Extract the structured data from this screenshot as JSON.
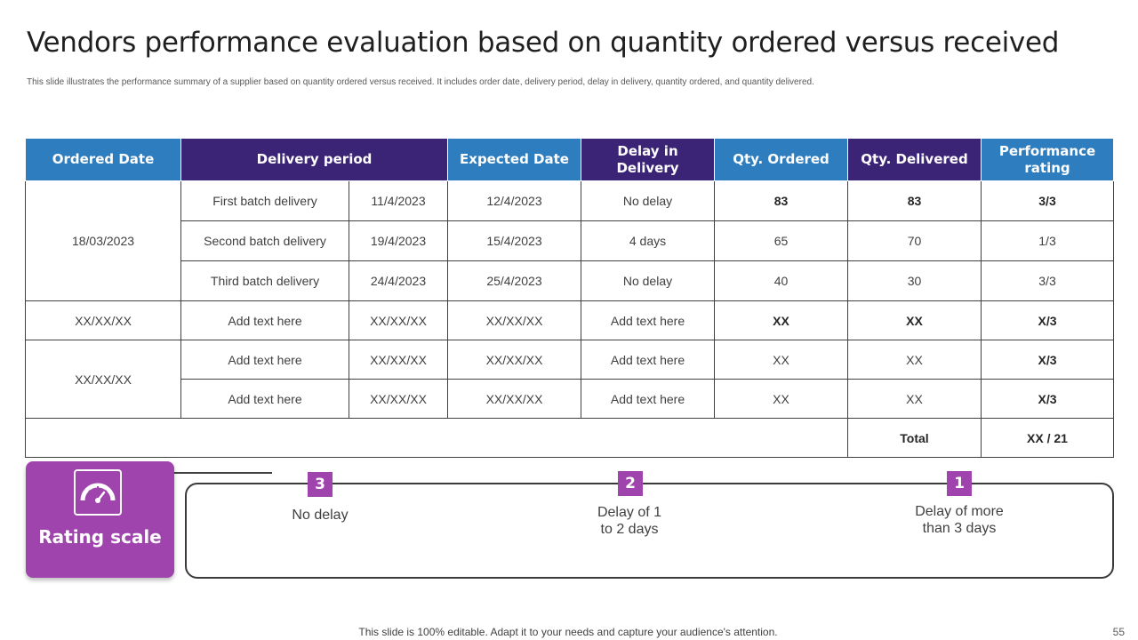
{
  "title": "Vendors performance evaluation based on quantity ordered versus received",
  "subtitle": "This slide illustrates the performance summary of a supplier based on quantity ordered versus received. It includes order date, delivery period, delay in delivery, quantity ordered, and quantity delivered.",
  "table": {
    "headers": {
      "ordered_date": "Ordered Date",
      "delivery_period": "Delivery period",
      "expected_date": "Expected Date",
      "delay": "Delay in Delivery",
      "qty_ordered": "Qty. Ordered",
      "qty_delivered": "Qty. Delivered",
      "rating": "Performance rating"
    },
    "group1": {
      "ordered_date": "18/03/2023",
      "rows": [
        {
          "batch": "First batch delivery",
          "delivery_date": "11/4/2023",
          "expected": "12/4/2023",
          "delay": "No delay",
          "qty_ordered": "83",
          "qty_delivered": "83",
          "rating": "3/3"
        },
        {
          "batch": "Second  batch delivery",
          "delivery_date": "19/4/2023",
          "expected": "15/4/2023",
          "delay": "4 days",
          "qty_ordered": "65",
          "qty_delivered": "70",
          "rating": "1/3"
        },
        {
          "batch": "Third batch delivery",
          "delivery_date": "24/4/2023",
          "expected": "25/4/2023",
          "delay": "No delay",
          "qty_ordered": "40",
          "qty_delivered": "30",
          "rating": "3/3"
        }
      ]
    },
    "group2": {
      "ordered_date": "XX/XX/XX",
      "rows": [
        {
          "batch": "Add text here",
          "delivery_date": "XX/XX/XX",
          "expected": "XX/XX/XX",
          "delay": "Add text here",
          "qty_ordered": "XX",
          "qty_delivered": "XX",
          "rating": "X/3"
        }
      ]
    },
    "group3": {
      "ordered_date": "XX/XX/XX",
      "rows": [
        {
          "batch": "Add text here",
          "delivery_date": "XX/XX/XX",
          "expected": "XX/XX/XX",
          "delay": "Add text here",
          "qty_ordered": "XX",
          "qty_delivered": "XX",
          "rating": "X/3"
        },
        {
          "batch": "Add text here",
          "delivery_date": "XX/XX/XX",
          "expected": "XX/XX/XX",
          "delay": "Add text here",
          "qty_ordered": "XX",
          "qty_delivered": "XX",
          "rating": "X/3"
        }
      ]
    },
    "total": {
      "label": "Total",
      "value": "XX / 21"
    }
  },
  "rating_scale": {
    "label": "Rating scale",
    "icon": "speedometer-icon",
    "levels": [
      {
        "score": "3",
        "text": "No delay"
      },
      {
        "score": "2",
        "text_line1": "Delay of 1",
        "text_line2": "to 2 days"
      },
      {
        "score": "1",
        "text_line1": "Delay of more",
        "text_line2": "than 3 days"
      }
    ]
  },
  "footer": "This slide is 100% editable. Adapt it to your needs and capture your audience's attention.",
  "page_number": "55",
  "colors": {
    "header_blue": "#2e7dbf",
    "header_purple": "#3b2476",
    "accent_purple": "#a044ad"
  }
}
